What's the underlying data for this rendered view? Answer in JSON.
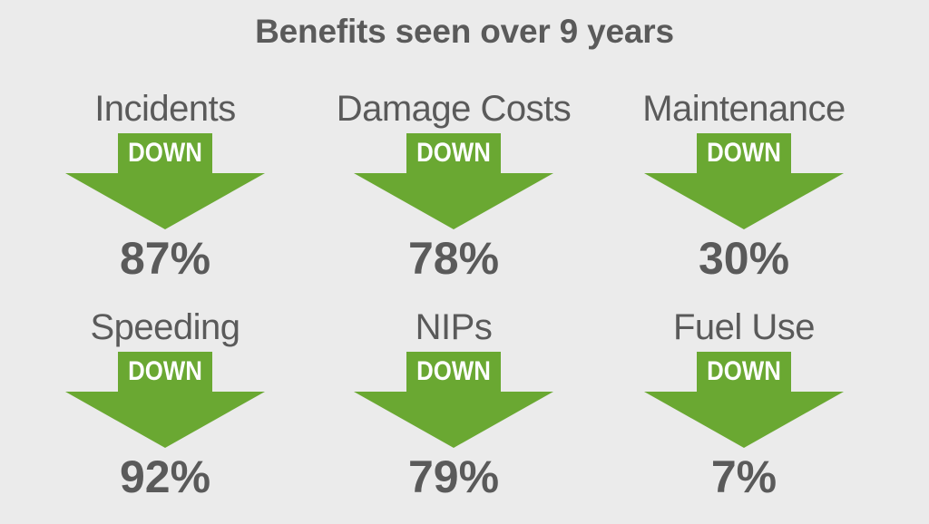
{
  "title": "Benefits seen over 9 years",
  "colors": {
    "background": "#ebebeb",
    "arrow_green": "#6aa832",
    "text": "#5a5a5a"
  },
  "stats": [
    {
      "label": "Incidents",
      "direction": "DOWN",
      "value": "87%"
    },
    {
      "label": "Damage Costs",
      "direction": "DOWN",
      "value": "78%"
    },
    {
      "label": "Maintenance",
      "direction": "DOWN",
      "value": "30%"
    },
    {
      "label": "Speeding",
      "direction": "DOWN",
      "value": "92%"
    },
    {
      "label": "NIPs",
      "direction": "DOWN",
      "value": "79%"
    },
    {
      "label": "Fuel Use",
      "direction": "DOWN",
      "value": "7%"
    }
  ]
}
